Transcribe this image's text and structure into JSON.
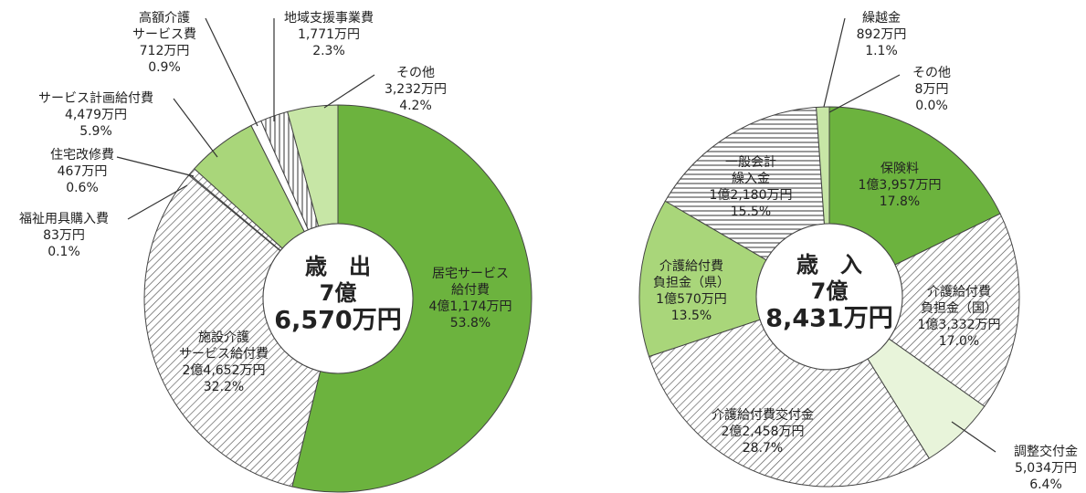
{
  "chart_data": [
    {
      "type": "pie",
      "center_label": [
        "歳　出",
        "7億",
        "6,570万円"
      ],
      "categories": [
        [
          "居宅サービス",
          "給付費"
        ],
        [
          "施設介護",
          "サービス給付費"
        ],
        [
          "福祉用具購入費"
        ],
        [
          "住宅改修費"
        ],
        [
          "サービス計画給付費"
        ],
        [
          "高額介護",
          "サービス費"
        ],
        [
          "地域支援事業費"
        ],
        [
          "その他"
        ]
      ],
      "amounts": [
        "4億1,174万円",
        "2億4,652万円",
        "83万円",
        "467万円",
        "4,479万円",
        "712万円",
        "1,771万円",
        "3,232万円"
      ],
      "values": [
        53.8,
        32.2,
        0.1,
        0.6,
        5.9,
        0.9,
        2.3,
        4.2
      ],
      "value_labels": [
        "53.8%",
        "32.2%",
        "0.1%",
        "0.6%",
        "5.9%",
        "0.9%",
        "2.3%",
        "4.2%"
      ],
      "colors": [
        "#6cb33e",
        "#ffffff",
        "#ffffff",
        "#ffffff",
        "#a9d67a",
        "#ffffff",
        "#ffffff",
        "#c7e6a6"
      ],
      "patterns": [
        "none",
        "diagonal",
        "diagonal",
        "diagonal",
        "none",
        "none",
        "vertical",
        "none"
      ]
    },
    {
      "type": "pie",
      "center_label": [
        "歳　入",
        "7億",
        "8,431万円"
      ],
      "categories": [
        [
          "保険料"
        ],
        [
          "介護給付費",
          "負担金（国）"
        ],
        [
          "調整交付金"
        ],
        [
          "介護給付費交付金"
        ],
        [
          "介護給付費",
          "負担金（県）"
        ],
        [
          "一般会計",
          "繰入金"
        ],
        [
          "繰越金"
        ],
        [
          "その他"
        ]
      ],
      "amounts": [
        "1億3,957万円",
        "1億3,332万円",
        "5,034万円",
        "2億2,458万円",
        "1億570万円",
        "1億2,180万円",
        "892万円",
        "8万円"
      ],
      "values": [
        17.8,
        17.0,
        6.4,
        28.7,
        13.5,
        15.5,
        1.1,
        0.0
      ],
      "value_labels": [
        "17.8%",
        "17.0%",
        "6.4%",
        "28.7%",
        "13.5%",
        "15.5%",
        "1.1%",
        "0.0%"
      ],
      "colors": [
        "#6cb33e",
        "#ffffff",
        "#e8f4da",
        "#ffffff",
        "#a9d67a",
        "#ffffff",
        "#c7e6a6",
        "#ffffff"
      ],
      "patterns": [
        "none",
        "diagonal",
        "none",
        "diagonal",
        "none",
        "horizontal",
        "none",
        "none"
      ]
    }
  ]
}
